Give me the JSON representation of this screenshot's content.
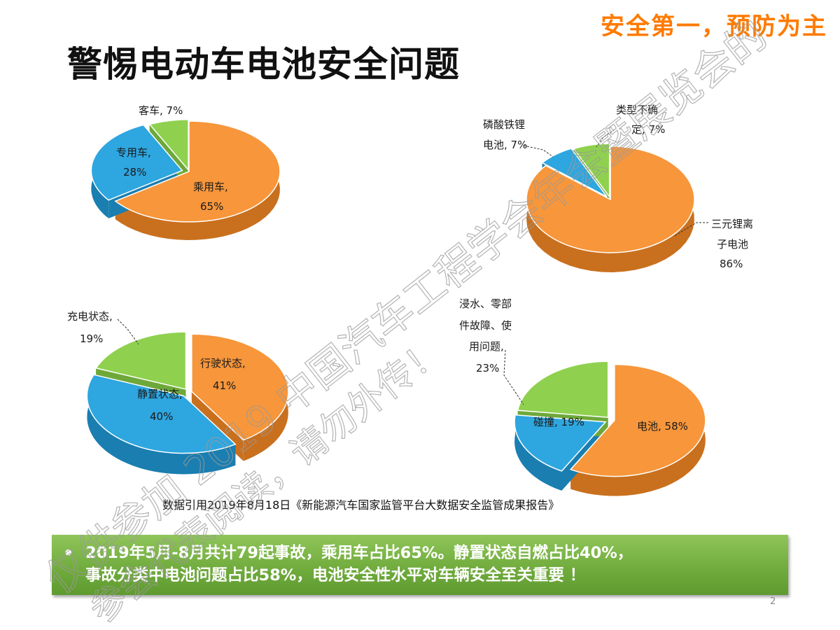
{
  "slogan": "安全第一，预防为主",
  "title": "警惕电动车电池安全问题",
  "source": "数据引用2019年8月18日《新能源汽车国家监管平台大数据安全监管成果报告》",
  "summary": {
    "line1": "2019年5月-8月共计79起事故，乘用车占比65%。静置状态自燃占比40%，",
    "line2": "事故分类中电池问题占比58%，电池安全性水平对车辆安全至关重要 ！"
  },
  "page_number": "2",
  "watermark": {
    "line1": "仅供参加 2019 中国汽车工程学会年会暨展览会的",
    "line2": "参会代表阅读，请勿外传！"
  },
  "colors": {
    "orange": "#f7963b",
    "blue": "#2ea6e0",
    "green": "#8fd14f",
    "banner": "#76b041",
    "slogan": "#ff7a00"
  },
  "chart_data": [
    {
      "type": "pie",
      "slices": [
        {
          "label": "乘用车, 65%",
          "value": 65,
          "color": "orange"
        },
        {
          "label": "专用车, 28%",
          "value": 28,
          "color": "blue"
        },
        {
          "label": "客车, 7%",
          "value": 7,
          "color": "green"
        }
      ]
    },
    {
      "type": "pie",
      "slices": [
        {
          "label": "三元锂离子电池 86%",
          "value": 86,
          "color": "orange"
        },
        {
          "label": "磷酸铁锂电池, 7%",
          "value": 7,
          "color": "blue"
        },
        {
          "label": "类型不确定, 7%",
          "value": 7,
          "color": "green"
        }
      ]
    },
    {
      "type": "pie",
      "slices": [
        {
          "label": "行驶状态, 41%",
          "value": 41,
          "color": "orange"
        },
        {
          "label": "静置状态, 40%",
          "value": 40,
          "color": "blue"
        },
        {
          "label": "充电状态, 19%",
          "value": 19,
          "color": "green"
        }
      ]
    },
    {
      "type": "pie",
      "slices": [
        {
          "label": "电池, 58%",
          "value": 58,
          "color": "orange"
        },
        {
          "label": "碰撞, 19%",
          "value": 19,
          "color": "blue"
        },
        {
          "label": "浸水、零部件故障、使用问题, 23%",
          "value": 23,
          "color": "green"
        }
      ]
    }
  ]
}
